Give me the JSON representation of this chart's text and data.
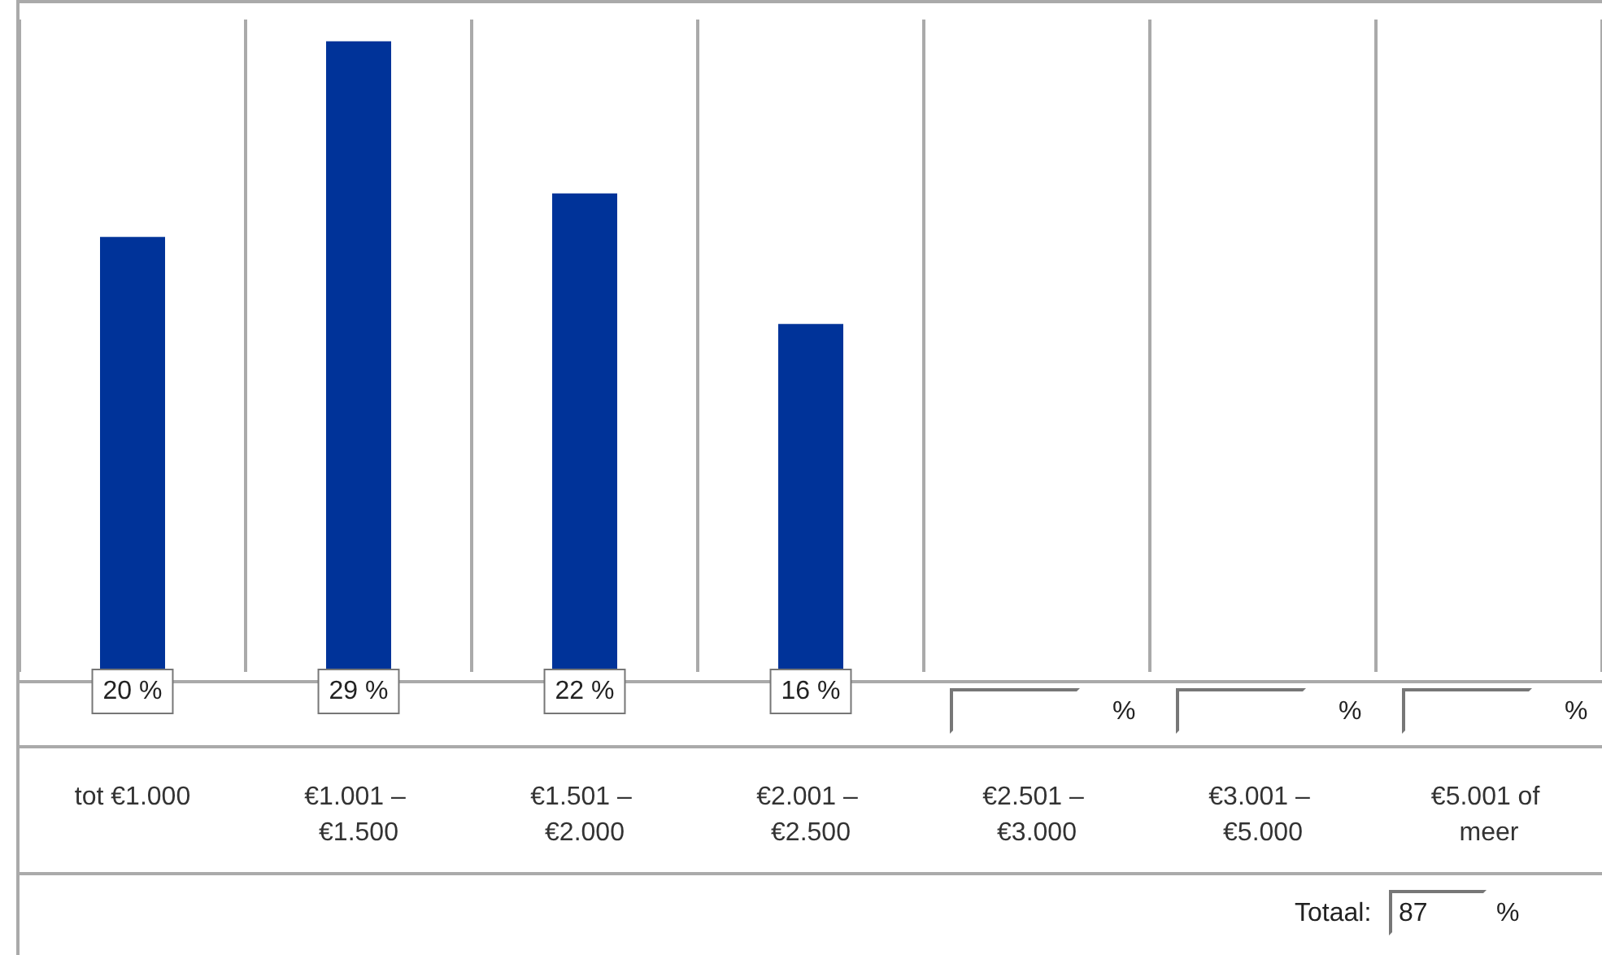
{
  "chart_data": {
    "type": "bar",
    "categories": [
      "tot €1.000",
      "€1.001 – €1.500",
      "€1.501 – €2.000",
      "€2.001 – €2.500",
      "€2.501 – €3.000",
      "€3.001 – €5.000",
      "€5.001 of meer"
    ],
    "values": [
      20,
      29,
      22,
      16,
      null,
      null,
      null
    ],
    "color": "#003399",
    "value_labels": [
      "20 %",
      "29 %",
      "22 %",
      "16 %",
      "%",
      "%",
      "%"
    ],
    "annotations": [
      "Totaal: 87 %"
    ],
    "grid": "x"
  }
}
